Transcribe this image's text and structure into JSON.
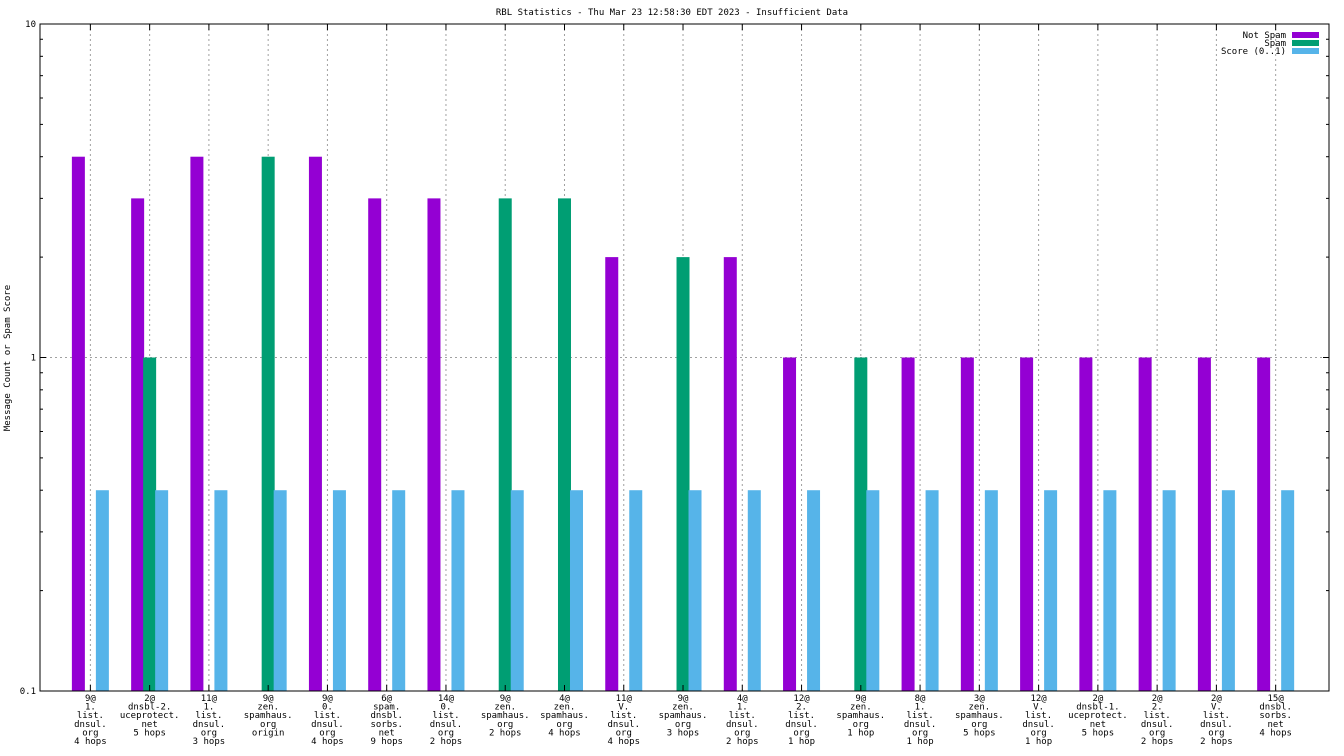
{
  "chart_data": {
    "type": "bar",
    "title": "RBL Statistics - Thu Mar 23 12:58:30 EDT 2023 - Insufficient Data",
    "ylabel": "Message Count or Spam Score",
    "xlabel": "",
    "yscale": "log",
    "ylim": [
      0.1,
      10
    ],
    "yticks": [
      "0.1",
      "1",
      "10"
    ],
    "grid": true,
    "legend_position": "top-right",
    "categories": [
      [
        "9@",
        "1.",
        "list.",
        "dnsul.",
        "org",
        "4 hops"
      ],
      [
        "2@",
        "dnsbl-2.",
        "uceprotect.",
        "net",
        "5 hops"
      ],
      [
        "11@",
        "1.",
        "list.",
        "dnsul.",
        "org",
        "3 hops"
      ],
      [
        "9@",
        "zen.",
        "spamhaus.",
        "org",
        "origin"
      ],
      [
        "9@",
        "0.",
        "list.",
        "dnsul.",
        "org",
        "4 hops"
      ],
      [
        "6@",
        "spam.",
        "dnsbl.",
        "sorbs.",
        "net",
        "9 hops"
      ],
      [
        "14@",
        "0.",
        "list.",
        "dnsul.",
        "org",
        "2 hops"
      ],
      [
        "9@",
        "zen.",
        "spamhaus.",
        "org",
        "2 hops"
      ],
      [
        "4@",
        "zen.",
        "spamhaus.",
        "org",
        "4 hops"
      ],
      [
        "11@",
        "V.",
        "list.",
        "dnsul.",
        "org",
        "4 hops"
      ],
      [
        "9@",
        "zen.",
        "spamhaus.",
        "org",
        "3 hops"
      ],
      [
        "4@",
        "1.",
        "list.",
        "dnsul.",
        "org",
        "2 hops"
      ],
      [
        "12@",
        "2.",
        "list.",
        "dnsul.",
        "org",
        "1 hop"
      ],
      [
        "9@",
        "zen.",
        "spamhaus.",
        "org",
        "1 hop"
      ],
      [
        "8@",
        "1.",
        "list.",
        "dnsul.",
        "org",
        "1 hop"
      ],
      [
        "3@",
        "zen.",
        "spamhaus.",
        "org",
        "5 hops"
      ],
      [
        "12@",
        "V.",
        "list.",
        "dnsul.",
        "org",
        "1 hop"
      ],
      [
        "2@",
        "dnsbl-1.",
        "uceprotect.",
        "net",
        "5 hops"
      ],
      [
        "2@",
        "2.",
        "list.",
        "dnsul.",
        "org",
        "2 hops"
      ],
      [
        "2@",
        "V.",
        "list.",
        "dnsul.",
        "org",
        "2 hops"
      ],
      [
        "15@",
        "dnsbl.",
        "sorbs.",
        "net",
        "4 hops"
      ]
    ],
    "series": [
      {
        "name": "Not Spam",
        "color": "#9400d3",
        "values": [
          4,
          3,
          4,
          null,
          4,
          3,
          3,
          null,
          null,
          2,
          null,
          2,
          1,
          null,
          1,
          1,
          1,
          1,
          1,
          1,
          1
        ]
      },
      {
        "name": "Spam",
        "color": "#009e73",
        "values": [
          null,
          1,
          null,
          4,
          null,
          null,
          null,
          3,
          3,
          null,
          2,
          null,
          null,
          1,
          null,
          null,
          null,
          null,
          null,
          null,
          null
        ]
      },
      {
        "name": "Score (0..1)",
        "color": "#56b4e9",
        "values": [
          0.4,
          0.4,
          0.4,
          0.4,
          0.4,
          0.4,
          0.4,
          0.4,
          0.4,
          0.4,
          0.4,
          0.4,
          0.4,
          0.4,
          0.4,
          0.4,
          0.4,
          0.4,
          0.4,
          0.4,
          0.4
        ]
      }
    ]
  }
}
